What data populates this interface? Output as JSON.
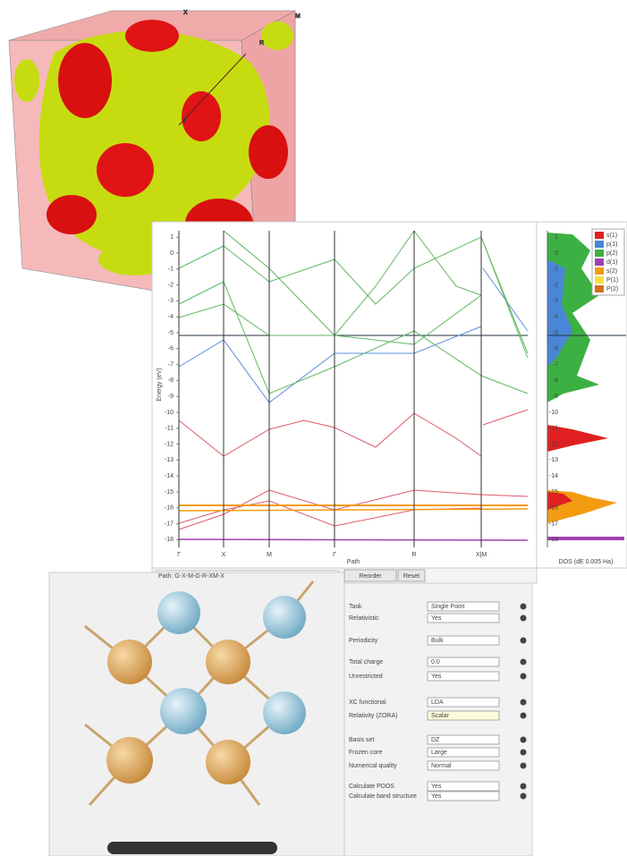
{
  "fermi_surface": {
    "labels": [
      "X",
      "M",
      "R",
      "Γ"
    ]
  },
  "band_structure": {
    "ylabel": "Energy (eV)",
    "xlabel": "Path",
    "yticks": [
      1,
      0,
      -1,
      -2,
      -3,
      -4,
      -5,
      -6,
      -7,
      -8,
      -9,
      -10,
      -11,
      -12,
      -13,
      -14,
      -15,
      -16,
      -17,
      -18
    ],
    "kpoints": [
      "Γ",
      "X",
      "M",
      "Γ",
      "R",
      "X|M"
    ]
  },
  "dos": {
    "xlabel": "DOS (dE 0.005 Ha)",
    "yticks": [
      1,
      0,
      -1,
      -2,
      -3,
      -4,
      -5,
      -6,
      -7,
      -8,
      -9,
      -10,
      -11,
      -12,
      -13,
      -14,
      -15,
      -16,
      -17,
      -18
    ],
    "legend": [
      {
        "name": "s(1)",
        "color": "#e02020"
      },
      {
        "name": "p(1)",
        "color": "#4a86d8"
      },
      {
        "name": "p(2)",
        "color": "#3cb043"
      },
      {
        "name": "d(1)",
        "color": "#a040b0"
      },
      {
        "name": "s(2)",
        "color": "#f39c12"
      },
      {
        "name": "P(1)",
        "color": "#f4e040"
      },
      {
        "name": "P(2)",
        "color": "#d0701a"
      }
    ]
  },
  "path_bar": {
    "path": "Path: G-X-M-G-R-XM-X",
    "buttons": [
      "Reorder",
      "Reset"
    ]
  },
  "settings": {
    "rows": [
      {
        "label": "Task",
        "value": "Single Point"
      },
      {
        "label": "Relativistic",
        "value": "Yes"
      },
      {
        "label": "Periodicity",
        "value": "Bulk"
      },
      {
        "label": "Total charge",
        "value": "0.0"
      },
      {
        "label": "Unrestricted",
        "value": "Yes"
      },
      {
        "label": "XC functional",
        "value": "LDA"
      },
      {
        "label": "Relativity (ZORA)",
        "value": "Scalar"
      },
      {
        "label": "Basis set",
        "value": "DZ"
      },
      {
        "label": "Frozen core",
        "value": "Large"
      },
      {
        "label": "Numerical quality",
        "value": "Normal"
      },
      {
        "label": "Calculate PDOS",
        "value": "Yes"
      },
      {
        "label": "Calculate band structure",
        "value": "Yes"
      }
    ]
  }
}
